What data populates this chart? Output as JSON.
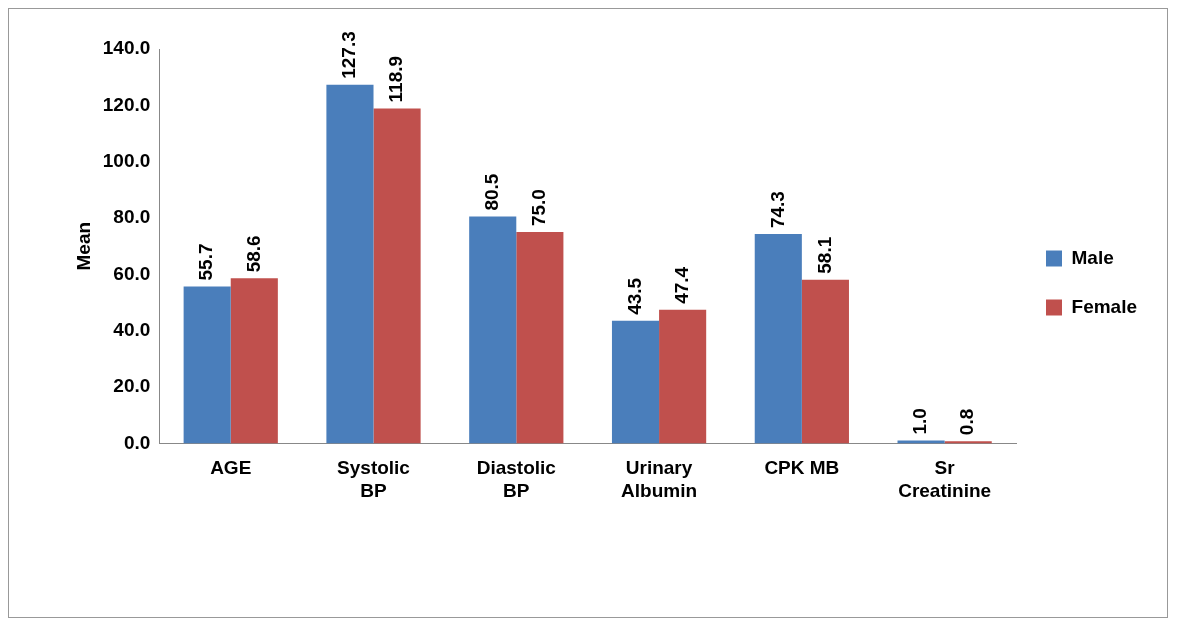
{
  "chart_data": {
    "type": "bar",
    "ylabel": "Mean",
    "categories": [
      "AGE",
      "Systolic BP",
      "Diastolic BP",
      "Urinary Albumin",
      "CPK MB",
      "Sr Creatinine"
    ],
    "series": [
      {
        "name": "Male",
        "color": "#4a7ebb",
        "values": [
          55.7,
          127.3,
          80.5,
          43.5,
          74.3,
          1.0
        ],
        "value_labels": [
          "55.7",
          "127.3",
          "80.5",
          "43.5",
          "74.3",
          "1.0"
        ]
      },
      {
        "name": "Female",
        "color": "#c0504d",
        "values": [
          58.6,
          118.9,
          75.0,
          47.4,
          58.1,
          0.8
        ],
        "value_labels": [
          "58.6",
          "118.9",
          "75.0",
          "47.4",
          "58.1",
          "0.8"
        ]
      }
    ],
    "ylim": [
      0,
      140
    ],
    "yticks": [
      {
        "value": 0,
        "label": "0.0"
      },
      {
        "value": 20,
        "label": "20.0"
      },
      {
        "value": 40,
        "label": "40.0"
      },
      {
        "value": 60,
        "label": "60.0"
      },
      {
        "value": 80,
        "label": "80.0"
      },
      {
        "value": 100,
        "label": "100.0"
      },
      {
        "value": 120,
        "label": "120.0"
      },
      {
        "value": 140,
        "label": "140.0"
      }
    ],
    "grid": false,
    "legend": "right"
  }
}
